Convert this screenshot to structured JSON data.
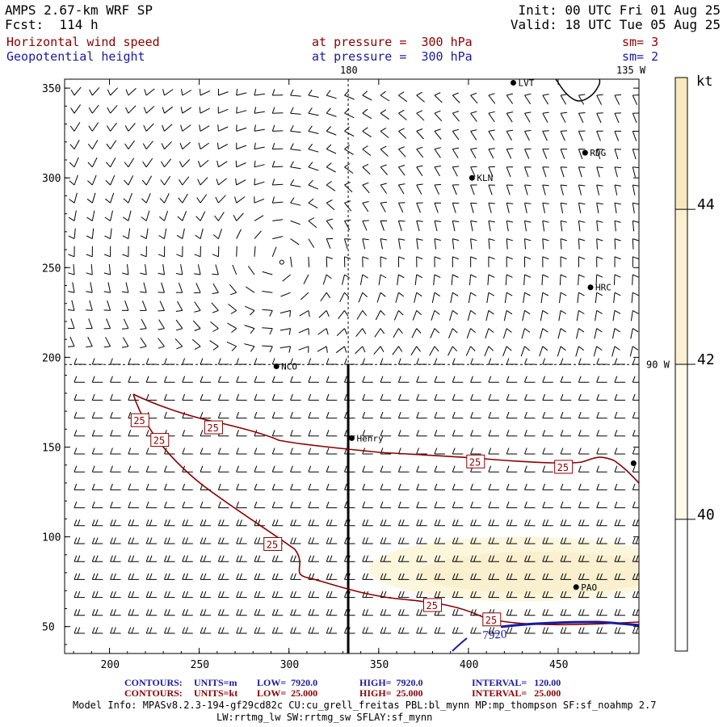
{
  "header": {
    "title_left": "AMPS 2.67-km WRF SP",
    "forecast": "Fcst:  114 h",
    "init": "Init: 00 UTC Fri 01 Aug 25",
    "valid": "Valid: 18 UTC Tue 05 Aug 25"
  },
  "fields": [
    {
      "name": "Horizontal wind speed",
      "level": "at pressure =  300 hPa",
      "smooth": "sm= 3",
      "color": "#8b0000"
    },
    {
      "name": "Geopotential height",
      "level": "at pressure =  300 hPa",
      "smooth": "sm= 2",
      "color": "#1a1aa0"
    }
  ],
  "axes": {
    "x_ticks": [
      "200",
      "250",
      "300",
      "350",
      "400",
      "450"
    ],
    "x_values": [
      200,
      250,
      300,
      350,
      400,
      450
    ],
    "y_ticks": [
      "50",
      "100",
      "150",
      "200",
      "250",
      "300",
      "350"
    ],
    "y_values": [
      50,
      100,
      150,
      200,
      250,
      300,
      350
    ],
    "x_range": [
      175,
      495
    ],
    "y_range": [
      35,
      355
    ]
  },
  "grid_lines": {
    "meridian_label": "180",
    "meridian_x": 333,
    "parallel_label": "90 W",
    "parallel_y": 196,
    "corner_label": "135 W"
  },
  "stations": [
    {
      "name": "LVT",
      "x": 425,
      "y": 353
    },
    {
      "name": "RDG",
      "x": 465,
      "y": 314
    },
    {
      "name": "KLN",
      "x": 402,
      "y": 300
    },
    {
      "name": "HRC",
      "x": 468,
      "y": 239
    },
    {
      "name": "NCO",
      "x": 293,
      "y": 195
    },
    {
      "name": "Henry",
      "x": 335,
      "y": 155
    },
    {
      "name": "PAO",
      "x": 460,
      "y": 72
    },
    {
      "name": "",
      "x": 492,
      "y": 141
    }
  ],
  "contour_labels": [
    {
      "text": "25",
      "x": 217,
      "y": 165
    },
    {
      "text": "25",
      "x": 228,
      "y": 154
    },
    {
      "text": "25",
      "x": 258,
      "y": 161
    },
    {
      "text": "25",
      "x": 291,
      "y": 96
    },
    {
      "text": "25",
      "x": 380,
      "y": 62
    },
    {
      "text": "25",
      "x": 404,
      "y": 142
    },
    {
      "text": "25",
      "x": 453,
      "y": 139
    },
    {
      "text": "25",
      "x": 413,
      "y": 54
    }
  ],
  "height_label": {
    "text": "7920",
    "x": 408,
    "y": 43
  },
  "colorbar": {
    "unit": "kt",
    "labels": [
      "44",
      "42",
      "40"
    ],
    "values": [
      44,
      42,
      40
    ],
    "range": [
      38.3,
      45.7
    ],
    "colors": [
      "#ffffff",
      "#fdfae8",
      "#fbf1d2",
      "#f7e8bf"
    ]
  },
  "footer": {
    "line1": {
      "prefix": "CONTOURS:",
      "units": "UNITS=m",
      "low": "LOW=  7920.0",
      "high": "HIGH=  7920.0",
      "interval": "INTERVAL=   120.00"
    },
    "line2": {
      "prefix": "CONTOURS:",
      "units": "UNITS=kt",
      "low": "LOW=  25.000",
      "high": "HIGH=  25.000",
      "interval": "INTERVAL=   25.000"
    },
    "model_info": "Model Info: MPASv8.2.3-194-gf29cd82c CU:cu_grell_freitas PBL:bl_mynn MP:mp_thompson SF:sf_noahmp 2.7",
    "model_info2": "LW:rrtmg_lw SW:rrtmg_sw SFLAY:sf_mynn"
  }
}
